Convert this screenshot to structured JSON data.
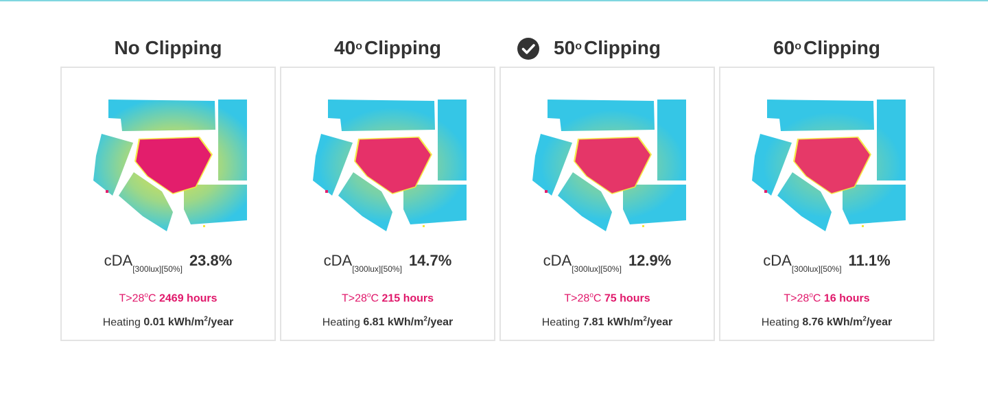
{
  "colors": {
    "cool": "#35c6e6",
    "hot": "#e31e6c",
    "warm": "#f5e637",
    "heat_text": "#e0176a",
    "text": "#333333",
    "card_border": "#e3e3e3"
  },
  "panels": [
    {
      "title": "No Clipping",
      "degree_symbol": "",
      "selected": false,
      "metric_label": "cDA",
      "metric_subscript": "[300lux][50%]",
      "cda": "23.8%",
      "overheat_label": "T>28",
      "overheat_degree": "o",
      "overheat_unit": "C",
      "overheat_hours": "2469 hours",
      "heating_label": "Heating",
      "heating_value": "0.01 kWh/m",
      "heating_exp": "2",
      "heating_unit": "/year",
      "hot_intensity": 1.0
    },
    {
      "title": "40",
      "degree_symbol": "o",
      "title_suffix": "Clipping",
      "selected": false,
      "metric_label": "cDA",
      "metric_subscript": "[300lux][50%]",
      "cda": "14.7%",
      "overheat_label": "T>28",
      "overheat_degree": "o",
      "overheat_unit": "C",
      "overheat_hours": "215 hours",
      "heating_label": "Heating",
      "heating_value": "6.81 kWh/m",
      "heating_exp": "2",
      "heating_unit": "/year",
      "hot_intensity": 0.62
    },
    {
      "title": "50",
      "degree_symbol": "o",
      "title_suffix": "Clipping",
      "selected": true,
      "selected_icon": "check-circle-icon",
      "metric_label": "cDA",
      "metric_subscript": "[300lux][50%]",
      "cda": "12.9%",
      "overheat_label": "T>28",
      "overheat_degree": "o",
      "overheat_unit": "C",
      "overheat_hours": "75 hours",
      "heating_label": "Heating",
      "heating_value": "7.81 kWh/m",
      "heating_exp": "2",
      "heating_unit": "/year",
      "hot_intensity": 0.54
    },
    {
      "title": "60",
      "degree_symbol": "o",
      "title_suffix": "Clipping",
      "selected": false,
      "metric_label": "cDA",
      "metric_subscript": "[300lux][50%]",
      "cda": "11.1%",
      "overheat_label": "T>28",
      "overheat_degree": "o",
      "overheat_unit": "C",
      "overheat_hours": "16 hours",
      "heating_label": "Heating",
      "heating_value": "8.76 kWh/m",
      "heating_exp": "2",
      "heating_unit": "/year",
      "hot_intensity": 0.46
    }
  ]
}
